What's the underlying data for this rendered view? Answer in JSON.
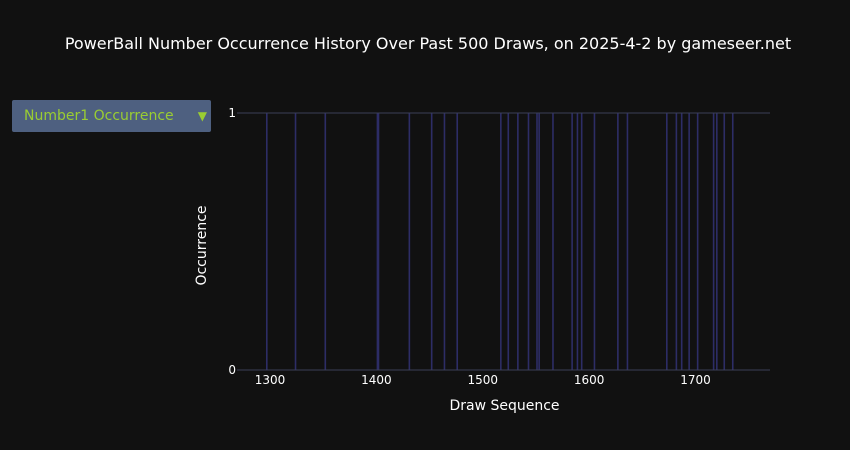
{
  "page": {
    "title": "PowerBall Number Occurrence History Over Past 500 Draws, on 2025-4-2 by gameseer.net"
  },
  "selector": {
    "selected": "Number1 Occurrence",
    "caret_icon": "triangle-down-icon"
  },
  "colors": {
    "background": "#111111",
    "bar": "#2d2d66",
    "axis": "#3a3f58",
    "text": "#ffffff",
    "selector_bg": "#4e6080",
    "selector_text": "#9acd32"
  },
  "chart_data": {
    "type": "bar",
    "title": "PowerBall Number Occurrence History Over Past 500 Draws, on 2025-4-2 by gameseer.net",
    "xlabel": "Draw Sequence",
    "ylabel": "Occurrence",
    "xlim": [
      1269,
      1770
    ],
    "ylim": [
      0,
      1
    ],
    "x_ticks": [
      1300,
      1400,
      1500,
      1600,
      1700
    ],
    "y_ticks": [
      0,
      1
    ],
    "grid": false,
    "x": [
      1297,
      1324,
      1352,
      1401,
      1402,
      1431,
      1452,
      1464,
      1476,
      1517,
      1524,
      1533,
      1543,
      1551,
      1553,
      1566,
      1584,
      1589,
      1593,
      1605,
      1627,
      1636,
      1673,
      1682,
      1687,
      1694,
      1702,
      1717,
      1720,
      1727,
      1735
    ],
    "values": [
      1,
      1,
      1,
      1,
      1,
      1,
      1,
      1,
      1,
      1,
      1,
      1,
      1,
      1,
      1,
      1,
      1,
      1,
      1,
      1,
      1,
      1,
      1,
      1,
      1,
      1,
      1,
      1,
      1,
      1,
      1
    ]
  }
}
